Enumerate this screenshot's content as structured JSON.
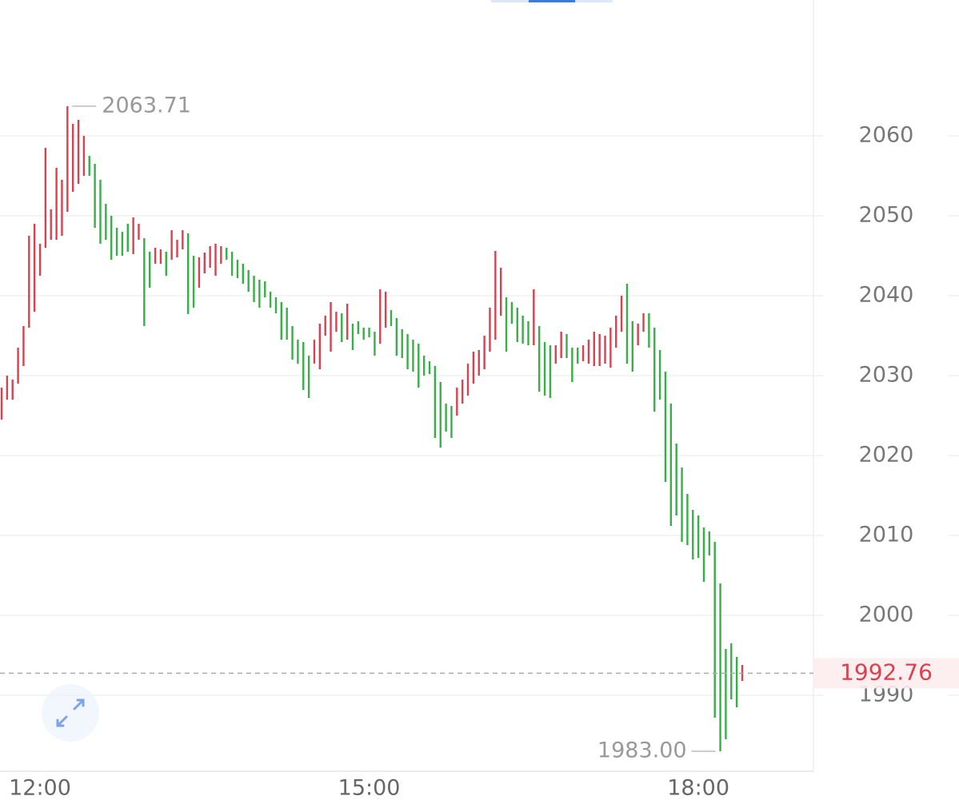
{
  "chart_data": {
    "type": "ohlc",
    "categories": [
      null,
      null,
      null,
      null,
      null,
      null,
      null,
      "12:00",
      null,
      null,
      null,
      null,
      null,
      null,
      null,
      null,
      null,
      null,
      null,
      null,
      null,
      null,
      null,
      null,
      null,
      null,
      null,
      null,
      null,
      null,
      null,
      null,
      null,
      null,
      null,
      null,
      null,
      null,
      null,
      null,
      null,
      null,
      null,
      null,
      null,
      null,
      null,
      null,
      null,
      null,
      null,
      null,
      null,
      null,
      null,
      null,
      null,
      null,
      null,
      null,
      null,
      null,
      null,
      null,
      null,
      null,
      null,
      "15:00",
      null,
      null,
      null,
      null,
      null,
      null,
      null,
      null,
      null,
      null,
      null,
      null,
      null,
      null,
      null,
      null,
      null,
      null,
      null,
      null,
      null,
      null,
      null,
      null,
      null,
      null,
      null,
      null,
      null,
      null,
      null,
      null,
      null,
      null,
      null,
      null,
      null,
      null,
      null,
      null,
      null,
      null,
      null,
      null,
      null,
      null,
      null,
      null,
      null,
      null,
      null,
      null,
      null,
      null,
      null,
      null,
      null,
      null,
      null,
      "18:00",
      null,
      null,
      null,
      null,
      null,
      null,
      null,
      null
    ],
    "high": [
      2028.5,
      2030,
      2029.5,
      2033.5,
      2036.2,
      2047.5,
      2049,
      2046.5,
      2058.5,
      2050.8,
      2056,
      2054.5,
      2063.71,
      2061.5,
      2062,
      2060,
      2057.5,
      2056.5,
      2054.5,
      2051.5,
      2050,
      2048.5,
      2048,
      2049,
      2049.8,
      2049,
      2047.2,
      2045.5,
      2046,
      2045.8,
      2045.5,
      2048.2,
      2047,
      2048.2,
      2047.8,
      2045,
      2044.8,
      2045.4,
      2046.2,
      2046.5,
      2046.2,
      2046,
      2045.5,
      2044.5,
      2044,
      2043.2,
      2042.5,
      2042,
      2041.8,
      2040.5,
      2039.8,
      2039.2,
      2038.5,
      2036.2,
      2034.5,
      2034.2,
      2032.5,
      2034.5,
      2036.5,
      2037.5,
      2039.2,
      2038,
      2037.8,
      2039,
      2036.5,
      2036.8,
      2036,
      2036,
      2035.5,
      2040.8,
      2040.5,
      2038.2,
      2037.2,
      2035.8,
      2035.2,
      2034.5,
      2034,
      2032.5,
      2031.8,
      2031.2,
      2029.2,
      2026.5,
      2026.2,
      2028.5,
      2029.5,
      2031.5,
      2033,
      2033.2,
      2035,
      2038.5,
      2045.6,
      2043.5,
      2039.8,
      2039.2,
      2038.5,
      2037.5,
      2036.8,
      2040.8,
      2036.2,
      2034.2,
      2033.8,
      2033.8,
      2035.5,
      2035.2,
      2033.5,
      2033.5,
      2033.8,
      2034.5,
      2035.5,
      2035.2,
      2035,
      2036,
      2037.5,
      2040,
      2041.5,
      2036.8,
      2036.5,
      2037.8,
      2037.8,
      2036,
      2033.2,
      2030.5,
      2026.5,
      2021.5,
      2018.5,
      2015.2,
      2013.2,
      2012.5,
      2011,
      2010.5,
      2009.2,
      2004,
      1995.8,
      1996.5,
      1994.8,
      1993.8
    ],
    "low": [
      2024.5,
      2027,
      2027,
      2029,
      2031.2,
      2036,
      2038,
      2042.5,
      2046,
      2047,
      2047,
      2047.5,
      2050.5,
      2053,
      2054,
      2055,
      2055,
      2048.5,
      2046.5,
      2047,
      2044.5,
      2045,
      2045,
      2045.5,
      2045.2,
      2047,
      2036.2,
      2041,
      2044,
      2044,
      2042.5,
      2044.5,
      2044.8,
      2045.8,
      2037.7,
      2038.5,
      2041,
      2042.8,
      2043.5,
      2042.5,
      2044,
      2044.5,
      2042.5,
      2042.2,
      2041.5,
      2040.5,
      2039.2,
      2038.5,
      2039.8,
      2038.5,
      2037.8,
      2034.5,
      2034.5,
      2032,
      2031.5,
      2028.2,
      2027.2,
      2031.5,
      2030.8,
      2035,
      2033,
      2035.5,
      2034.2,
      2034.5,
      2033.2,
      2035.2,
      2034.5,
      2034.8,
      2032.5,
      2034,
      2036,
      2036.2,
      2032.5,
      2032.2,
      2030.8,
      2030.5,
      2028.5,
      2030,
      2030.2,
      2022.2,
      2021,
      2023,
      2022.2,
      2025,
      2026.5,
      2027.5,
      2029,
      2030,
      2030.8,
      2033,
      2034.5,
      2037.5,
      2033,
      2036.5,
      2034.2,
      2034,
      2033.8,
      2033.8,
      2028,
      2027.5,
      2027.2,
      2031.5,
      2032.2,
      2032.2,
      2029.2,
      2031.5,
      2031.8,
      2031.5,
      2031.2,
      2031.2,
      2031.5,
      2031,
      2033.5,
      2035.5,
      2031.5,
      2030.5,
      2033.8,
      2035.5,
      2033.5,
      2025.5,
      2027,
      2016.7,
      2011.2,
      2012.5,
      2009.2,
      2008.8,
      2007,
      2007.2,
      2004.2,
      2007.5,
      1987.2,
      1983,
      1984.5,
      1989.5,
      1988.5,
      1991.8
    ],
    "rising": [
      true,
      true,
      true,
      true,
      true,
      true,
      true,
      true,
      true,
      true,
      true,
      true,
      true,
      true,
      true,
      true,
      false,
      false,
      false,
      false,
      false,
      false,
      false,
      false,
      true,
      true,
      false,
      false,
      true,
      true,
      false,
      true,
      true,
      true,
      false,
      false,
      true,
      true,
      true,
      true,
      true,
      false,
      false,
      false,
      false,
      false,
      false,
      false,
      false,
      false,
      false,
      false,
      false,
      false,
      false,
      false,
      false,
      true,
      true,
      true,
      true,
      true,
      false,
      true,
      false,
      false,
      false,
      false,
      false,
      true,
      true,
      false,
      false,
      false,
      false,
      false,
      false,
      false,
      false,
      false,
      false,
      false,
      false,
      true,
      true,
      true,
      true,
      true,
      true,
      true,
      true,
      true,
      false,
      false,
      false,
      false,
      false,
      true,
      false,
      false,
      false,
      true,
      true,
      false,
      false,
      false,
      true,
      true,
      true,
      true,
      true,
      true,
      true,
      true,
      false,
      false,
      true,
      true,
      false,
      false,
      false,
      false,
      false,
      false,
      false,
      false,
      false,
      false,
      false,
      false,
      false,
      false,
      false,
      false,
      false,
      true
    ],
    "up_color": "#d9414f",
    "down_color": "#36b046",
    "ylim": [
      1980,
      2077
    ],
    "yticks": [
      1990,
      2000,
      2010,
      2020,
      2030,
      2040,
      2050,
      2060
    ],
    "grid": true,
    "high_label": 2063.71,
    "low_label": {
      "value": 1983,
      "label": "1983.00"
    },
    "last_price": 1992.76
  }
}
